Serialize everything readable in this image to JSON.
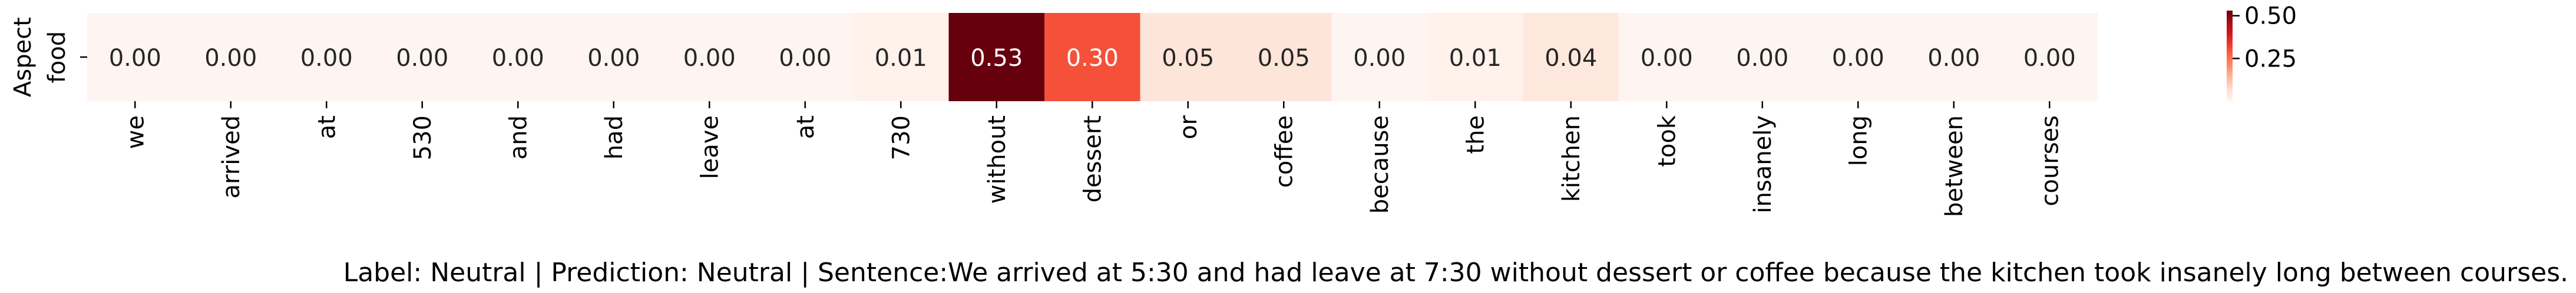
{
  "chart_data": {
    "type": "heatmap",
    "ylabel": "Aspect",
    "rows": [
      "food"
    ],
    "columns": [
      "we",
      "arrived",
      "at",
      "530",
      "and",
      "had",
      "leave",
      "at",
      "730",
      "without",
      "dessert",
      "or",
      "coffee",
      "because",
      "the",
      "kitchen",
      "took",
      "insanely",
      "long",
      "between",
      "courses"
    ],
    "values": [
      [
        0.0,
        0.0,
        0.0,
        0.0,
        0.0,
        0.0,
        0.0,
        0.0,
        0.01,
        0.53,
        0.3,
        0.05,
        0.05,
        0.0,
        0.01,
        0.04,
        0.0,
        0.0,
        0.0,
        0.0,
        0.0
      ]
    ],
    "value_labels": [
      "0.00",
      "0.00",
      "0.00",
      "0.00",
      "0.00",
      "0.00",
      "0.00",
      "0.00",
      "0.01",
      "0.53",
      "0.30",
      "0.05",
      "0.05",
      "0.00",
      "0.01",
      "0.04",
      "0.00",
      "0.00",
      "0.00",
      "0.00",
      "0.00"
    ],
    "colormap": "Reds",
    "color_range": [
      0.0,
      0.53
    ],
    "colorbar_ticks": [
      {
        "value": 0.25,
        "label": "0.25"
      },
      {
        "value": 0.5,
        "label": "0.50"
      }
    ],
    "caption": "Label: Neutral | Prediction: Neutral | Sentence:We arrived at 5:30 and had leave at 7:30 without dessert or coffee because the kitchen took insanely long between courses."
  }
}
